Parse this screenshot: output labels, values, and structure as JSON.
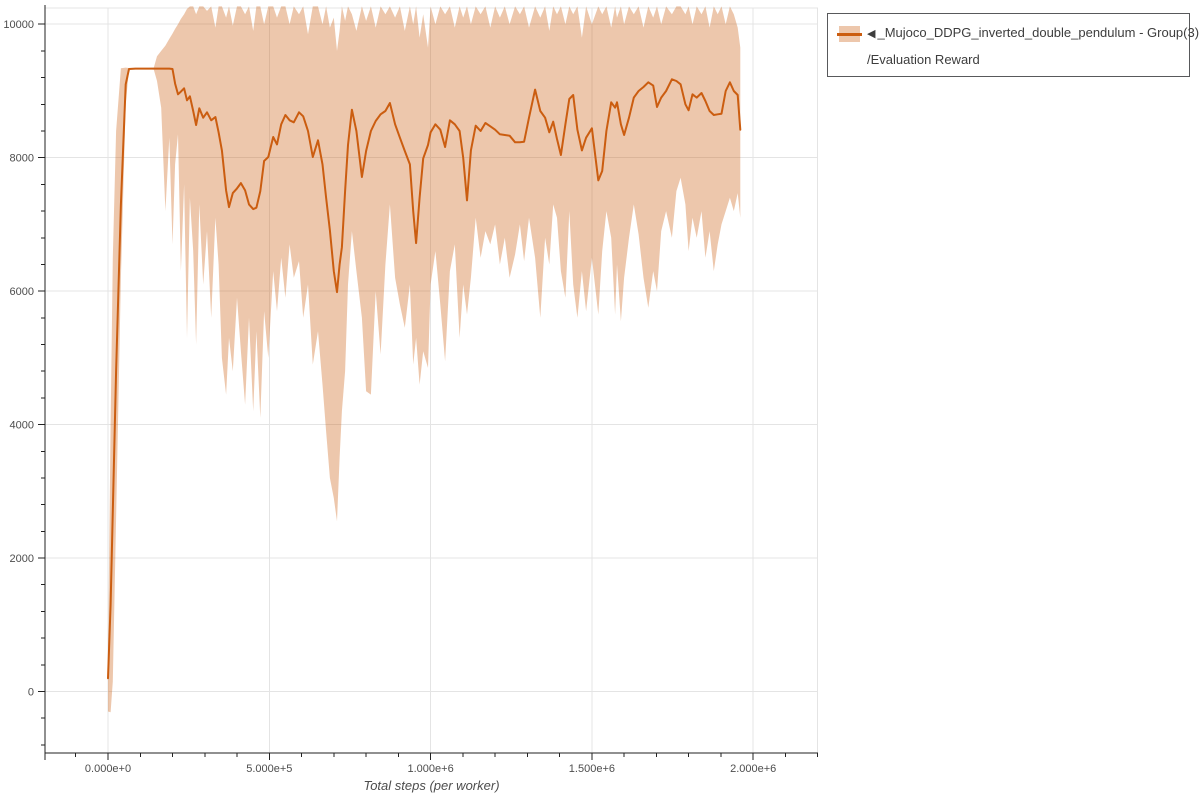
{
  "page": {
    "background": "#ffffff"
  },
  "legend": {
    "marker": "◀",
    "series_name": "_Mujoco_DDPG_inverted_double_pendulum - Group(3)",
    "metric_name": "/Evaluation Reward",
    "border_color": "#58595b"
  },
  "colors": {
    "grid": "#e4e4e4",
    "axis": "#222222",
    "tick_label": "#4d4d4d",
    "axis_title": "#4d4d4d"
  },
  "chart_data": {
    "type": "line",
    "title": "",
    "xlabel": "Total steps (per worker)",
    "ylabel": "",
    "grid": true,
    "legend_position": "outside-top-right",
    "xlim": [
      -195000,
      2200000
    ],
    "ylim": [
      -920,
      10268
    ],
    "x_ticks": [
      {
        "value": 0,
        "label": "0.000e+0"
      },
      {
        "value": 500000,
        "label": "5.000e+5"
      },
      {
        "value": 1000000,
        "label": "1.000e+6"
      },
      {
        "value": 1500000,
        "label": "1.500e+6"
      },
      {
        "value": 2000000,
        "label": "2.000e+6"
      }
    ],
    "y_ticks": [
      {
        "value": 0,
        "label": "0"
      },
      {
        "value": 2000,
        "label": "2000"
      },
      {
        "value": 4000,
        "label": "4000"
      },
      {
        "value": 6000,
        "label": "6000"
      },
      {
        "value": 8000,
        "label": "8000"
      },
      {
        "value": 10000,
        "label": "10000"
      }
    ],
    "x_minor_step": 100000,
    "y_minor_step": 400,
    "point_format": [
      "step",
      "mean",
      "lower",
      "upper"
    ],
    "series": [
      {
        "name": "◀_Mujoco_DDPG_inverted_double_pendulum - Group(3)/Evaluation Reward",
        "color": "#cb5d10",
        "band_color": "rgba(204,94,16,0.35)",
        "points": [
          [
            0,
            200,
            -300,
            500
          ],
          [
            8000,
            1300,
            -310,
            4000
          ],
          [
            15000,
            2700,
            150,
            6500
          ],
          [
            25000,
            4800,
            2600,
            8400
          ],
          [
            40000,
            7300,
            6200,
            9340
          ],
          [
            55000,
            9100,
            8800,
            9350
          ],
          [
            65000,
            9330,
            9320,
            9345
          ],
          [
            85000,
            9335,
            9325,
            9345
          ],
          [
            105000,
            9335,
            9325,
            9345
          ],
          [
            125000,
            9335,
            9325,
            9345
          ],
          [
            142000,
            9335,
            9320,
            9350
          ],
          [
            152000,
            9335,
            9150,
            9520
          ],
          [
            165000,
            9335,
            8750,
            9600
          ],
          [
            178000,
            9335,
            7200,
            9680
          ],
          [
            190000,
            9335,
            8300,
            9780
          ],
          [
            200000,
            9330,
            6700,
            9860
          ],
          [
            208000,
            9110,
            7900,
            9930
          ],
          [
            217000,
            8950,
            8350,
            10000
          ],
          [
            226000,
            8990,
            6300,
            10080
          ],
          [
            236000,
            9040,
            7600,
            10150
          ],
          [
            245000,
            8860,
            5300,
            10230
          ],
          [
            254000,
            8920,
            7400,
            10268
          ],
          [
            264000,
            8700,
            6600,
            10268
          ],
          [
            273000,
            8490,
            5200,
            10150
          ],
          [
            283000,
            8740,
            7300,
            10268
          ],
          [
            295000,
            8600,
            6100,
            10268
          ],
          [
            307000,
            8680,
            6900,
            10200
          ],
          [
            320000,
            8560,
            5600,
            10268
          ],
          [
            333000,
            8610,
            7100,
            9950
          ],
          [
            343000,
            8380,
            6400,
            10268
          ],
          [
            353000,
            8110,
            5000,
            10268
          ],
          [
            366000,
            7510,
            4450,
            10100
          ],
          [
            375000,
            7260,
            5300,
            10268
          ],
          [
            387000,
            7470,
            4800,
            9980
          ],
          [
            400000,
            7540,
            5900,
            10268
          ],
          [
            412000,
            7620,
            5100,
            10268
          ],
          [
            425000,
            7510,
            4300,
            10150
          ],
          [
            437000,
            7300,
            5600,
            10268
          ],
          [
            450000,
            7230,
            4200,
            9900
          ],
          [
            460000,
            7250,
            5400,
            10268
          ],
          [
            472000,
            7500,
            4100,
            10268
          ],
          [
            484000,
            7950,
            5700,
            10000
          ],
          [
            497000,
            8010,
            5000,
            10268
          ],
          [
            512000,
            8310,
            6300,
            10268
          ],
          [
            524000,
            8200,
            5700,
            10100
          ],
          [
            537000,
            8500,
            6500,
            10268
          ],
          [
            550000,
            8640,
            5900,
            10268
          ],
          [
            563000,
            8560,
            6700,
            10000
          ],
          [
            576000,
            8530,
            6200,
            10268
          ],
          [
            592000,
            8680,
            6450,
            10150
          ],
          [
            605000,
            8620,
            5600,
            10268
          ],
          [
            620000,
            8400,
            6100,
            9850
          ],
          [
            635000,
            8010,
            4900,
            10268
          ],
          [
            651000,
            8260,
            5400,
            10268
          ],
          [
            665000,
            7900,
            4600,
            10000
          ],
          [
            676000,
            7400,
            3900,
            10268
          ],
          [
            688000,
            6910,
            3200,
            9950
          ],
          [
            700000,
            6300,
            2900,
            10100
          ],
          [
            710000,
            5985,
            2550,
            9600
          ],
          [
            718000,
            6400,
            3500,
            9900
          ],
          [
            725000,
            6660,
            4200,
            10268
          ],
          [
            735000,
            7500,
            4800,
            10050
          ],
          [
            744000,
            8190,
            6100,
            10268
          ],
          [
            756000,
            8720,
            6900,
            10150
          ],
          [
            770000,
            8400,
            6300,
            9900
          ],
          [
            787000,
            7710,
            5600,
            10268
          ],
          [
            800000,
            8100,
            4500,
            10050
          ],
          [
            815000,
            8400,
            4450,
            10268
          ],
          [
            830000,
            8550,
            6000,
            9950
          ],
          [
            845000,
            8650,
            5050,
            10268
          ],
          [
            860000,
            8700,
            6400,
            10150
          ],
          [
            874000,
            8820,
            7300,
            10268
          ],
          [
            890000,
            8500,
            6200,
            10100
          ],
          [
            905000,
            8300,
            5800,
            10268
          ],
          [
            920000,
            8100,
            5450,
            9900
          ],
          [
            936000,
            7900,
            6100,
            10268
          ],
          [
            946000,
            7200,
            4900,
            10000
          ],
          [
            955000,
            6720,
            5300,
            10268
          ],
          [
            966000,
            7400,
            4600,
            9800
          ],
          [
            977000,
            7990,
            5100,
            10150
          ],
          [
            992000,
            8190,
            4850,
            9650
          ],
          [
            1000000,
            8380,
            6100,
            10268
          ],
          [
            1015000,
            8500,
            6600,
            10000
          ],
          [
            1030000,
            8420,
            5800,
            10268
          ],
          [
            1045000,
            8160,
            4950,
            10150
          ],
          [
            1060000,
            8560,
            6300,
            10268
          ],
          [
            1075000,
            8500,
            6700,
            9950
          ],
          [
            1090000,
            8400,
            5300,
            10268
          ],
          [
            1101000,
            8000,
            6100,
            10100
          ],
          [
            1113000,
            7360,
            5650,
            10268
          ],
          [
            1125000,
            8110,
            6200,
            10000
          ],
          [
            1140000,
            8480,
            7100,
            10268
          ],
          [
            1155000,
            8400,
            6500,
            10150
          ],
          [
            1170000,
            8520,
            6900,
            10268
          ],
          [
            1185000,
            8470,
            6700,
            9950
          ],
          [
            1200000,
            8420,
            7000,
            10268
          ],
          [
            1215000,
            8350,
            6400,
            10100
          ],
          [
            1230000,
            8340,
            6800,
            10268
          ],
          [
            1245000,
            8330,
            6200,
            10000
          ],
          [
            1262000,
            8230,
            6550,
            10268
          ],
          [
            1277000,
            8230,
            7000,
            10150
          ],
          [
            1290000,
            8240,
            6450,
            10268
          ],
          [
            1305000,
            8600,
            7100,
            9950
          ],
          [
            1324000,
            9020,
            6500,
            10268
          ],
          [
            1340000,
            8700,
            5600,
            10100
          ],
          [
            1355000,
            8600,
            6800,
            10268
          ],
          [
            1368000,
            8380,
            6400,
            9900
          ],
          [
            1380000,
            8540,
            7300,
            10268
          ],
          [
            1392000,
            8280,
            7100,
            10150
          ],
          [
            1404000,
            8040,
            6300,
            10268
          ],
          [
            1418000,
            8500,
            5900,
            10000
          ],
          [
            1430000,
            8880,
            7200,
            10268
          ],
          [
            1442000,
            8940,
            6100,
            10150
          ],
          [
            1455000,
            8420,
            5600,
            10268
          ],
          [
            1469000,
            8110,
            6300,
            9800
          ],
          [
            1482000,
            8300,
            5700,
            10268
          ],
          [
            1500000,
            8440,
            6500,
            10000
          ],
          [
            1520000,
            7660,
            5650,
            10268
          ],
          [
            1532000,
            7800,
            6600,
            10150
          ],
          [
            1545000,
            8400,
            7200,
            10268
          ],
          [
            1560000,
            8830,
            6800,
            9950
          ],
          [
            1572000,
            8750,
            5650,
            10268
          ],
          [
            1578000,
            8830,
            6400,
            10100
          ],
          [
            1590000,
            8500,
            5550,
            10268
          ],
          [
            1600000,
            8340,
            6200,
            10000
          ],
          [
            1615000,
            8600,
            6800,
            10268
          ],
          [
            1630000,
            8900,
            7300,
            10150
          ],
          [
            1645000,
            9000,
            6850,
            10268
          ],
          [
            1660000,
            9060,
            6200,
            9950
          ],
          [
            1675000,
            9130,
            5750,
            10268
          ],
          [
            1690000,
            9080,
            6300,
            10100
          ],
          [
            1702000,
            8760,
            6000,
            10268
          ],
          [
            1715000,
            8900,
            6900,
            10000
          ],
          [
            1730000,
            9000,
            7200,
            10268
          ],
          [
            1748000,
            9175,
            6800,
            10150
          ],
          [
            1762000,
            9150,
            7500,
            10268
          ],
          [
            1775000,
            9100,
            7700,
            10268
          ],
          [
            1790000,
            8800,
            7300,
            10150
          ],
          [
            1800000,
            8710,
            6600,
            10268
          ],
          [
            1812000,
            8950,
            7100,
            10000
          ],
          [
            1825000,
            8900,
            6800,
            10268
          ],
          [
            1840000,
            8970,
            7200,
            10150
          ],
          [
            1852000,
            8850,
            6500,
            10268
          ],
          [
            1865000,
            8700,
            6900,
            9950
          ],
          [
            1878000,
            8640,
            6300,
            10268
          ],
          [
            1890000,
            8650,
            6700,
            10150
          ],
          [
            1902000,
            8660,
            7000,
            10268
          ],
          [
            1915000,
            9000,
            7200,
            10000
          ],
          [
            1928000,
            9130,
            7400,
            10268
          ],
          [
            1940000,
            9000,
            7200,
            10150
          ],
          [
            1952000,
            8940,
            7470,
            9950
          ],
          [
            1960000,
            8420,
            7100,
            9650
          ]
        ]
      }
    ]
  }
}
